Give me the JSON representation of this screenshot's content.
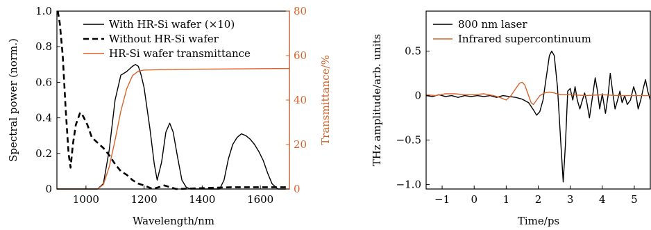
{
  "chart_data": [
    {
      "type": "line",
      "xlabel": "Wavelength/nm",
      "ylabel": "Spectral power (norm.)",
      "y2label": "Transmittance/%",
      "xlim": [
        900,
        1700
      ],
      "ylim": [
        0,
        1.0
      ],
      "y2lim": [
        0,
        80
      ],
      "x_ticks": [
        "1000",
        "1200",
        "1400",
        "1600"
      ],
      "y_ticks": [
        "0",
        "0.2",
        "0.4",
        "0.6",
        "0.8",
        "1.0"
      ],
      "y2_ticks": [
        "0",
        "20",
        "40",
        "60",
        "80"
      ],
      "legend_position": "top-right",
      "grid": false,
      "series": [
        {
          "name": "With HR-Si wafer (×10)",
          "color": "#000000",
          "style": "solid",
          "axis": "left",
          "points": [
            [
              900,
              0
            ],
            [
              1040,
              0
            ],
            [
              1060,
              0.03
            ],
            [
              1080,
              0.22
            ],
            [
              1100,
              0.5
            ],
            [
              1120,
              0.64
            ],
            [
              1140,
              0.66
            ],
            [
              1160,
              0.69
            ],
            [
              1170,
              0.7
            ],
            [
              1180,
              0.69
            ],
            [
              1190,
              0.64
            ],
            [
              1200,
              0.57
            ],
            [
              1220,
              0.34
            ],
            [
              1235,
              0.14
            ],
            [
              1245,
              0.05
            ],
            [
              1260,
              0.15
            ],
            [
              1275,
              0.32
            ],
            [
              1288,
              0.37
            ],
            [
              1300,
              0.32
            ],
            [
              1315,
              0.18
            ],
            [
              1330,
              0.05
            ],
            [
              1345,
              0.01
            ],
            [
              1360,
              0
            ],
            [
              1460,
              0
            ],
            [
              1475,
              0.05
            ],
            [
              1490,
              0.17
            ],
            [
              1505,
              0.25
            ],
            [
              1520,
              0.29
            ],
            [
              1535,
              0.31
            ],
            [
              1550,
              0.3
            ],
            [
              1565,
              0.28
            ],
            [
              1580,
              0.25
            ],
            [
              1595,
              0.21
            ],
            [
              1610,
              0.16
            ],
            [
              1625,
              0.09
            ],
            [
              1640,
              0.03
            ],
            [
              1660,
              0
            ],
            [
              1700,
              0
            ]
          ]
        },
        {
          "name": "Without HR-Si wafer",
          "color": "#000000",
          "style": "dashed",
          "axis": "left",
          "points": [
            [
              903,
              1.0
            ],
            [
              910,
              0.93
            ],
            [
              920,
              0.75
            ],
            [
              930,
              0.45
            ],
            [
              940,
              0.2
            ],
            [
              947,
              0.12
            ],
            [
              955,
              0.25
            ],
            [
              965,
              0.36
            ],
            [
              980,
              0.43
            ],
            [
              990,
              0.41
            ],
            [
              1005,
              0.36
            ],
            [
              1020,
              0.29
            ],
            [
              1040,
              0.26
            ],
            [
              1060,
              0.23
            ],
            [
              1080,
              0.19
            ],
            [
              1100,
              0.14
            ],
            [
              1120,
              0.1
            ],
            [
              1140,
              0.08
            ],
            [
              1160,
              0.05
            ],
            [
              1180,
              0.03
            ],
            [
              1200,
              0.02
            ],
            [
              1215,
              0.01
            ],
            [
              1230,
              0
            ],
            [
              1250,
              0.01
            ],
            [
              1270,
              0.02
            ],
            [
              1290,
              0.01
            ],
            [
              1310,
              0
            ],
            [
              1500,
              0.01
            ],
            [
              1700,
              0.01
            ]
          ]
        },
        {
          "name": "HR-Si wafer transmittance",
          "color": "#d9622b",
          "style": "solid",
          "axis": "right",
          "points": [
            [
              900,
              0
            ],
            [
              1040,
              0
            ],
            [
              1060,
              2
            ],
            [
              1080,
              10
            ],
            [
              1100,
              22
            ],
            [
              1120,
              35
            ],
            [
              1140,
              45
            ],
            [
              1160,
              51
            ],
            [
              1180,
              53
            ],
            [
              1200,
              53.5
            ],
            [
              1300,
              53.8
            ],
            [
              1500,
              54
            ],
            [
              1700,
              54.2
            ]
          ]
        }
      ]
    },
    {
      "type": "line",
      "xlabel": "Time/ps",
      "ylabel": "THz amplitude/arb. units",
      "xlim": [
        -1.5,
        5.5
      ],
      "ylim": [
        -1.05,
        0.95
      ],
      "x_ticks": [
        "−1",
        "0",
        "1",
        "2",
        "3",
        "4",
        "5"
      ],
      "y_ticks": [
        "−1.0",
        "−0.5",
        "0",
        "0.5"
      ],
      "legend_position": "top-left",
      "grid": false,
      "series": [
        {
          "name": "800 nm laser",
          "color": "#000000",
          "style": "solid",
          "points": [
            [
              -1.5,
              0
            ],
            [
              -1.3,
              -0.01
            ],
            [
              -1.1,
              0.01
            ],
            [
              -0.9,
              -0.01
            ],
            [
              -0.7,
              0
            ],
            [
              -0.5,
              -0.02
            ],
            [
              -0.3,
              0
            ],
            [
              -0.1,
              -0.01
            ],
            [
              0.1,
              0
            ],
            [
              0.3,
              -0.01
            ],
            [
              0.5,
              0
            ],
            [
              0.7,
              -0.02
            ],
            [
              0.9,
              0
            ],
            [
              1.1,
              -0.01
            ],
            [
              1.3,
              -0.02
            ],
            [
              1.5,
              -0.04
            ],
            [
              1.7,
              -0.08
            ],
            [
              1.85,
              -0.16
            ],
            [
              1.95,
              -0.22
            ],
            [
              2.05,
              -0.18
            ],
            [
              2.15,
              -0.05
            ],
            [
              2.25,
              0.2
            ],
            [
              2.35,
              0.45
            ],
            [
              2.42,
              0.5
            ],
            [
              2.5,
              0.45
            ],
            [
              2.6,
              0.1
            ],
            [
              2.7,
              -0.5
            ],
            [
              2.78,
              -0.97
            ],
            [
              2.85,
              -0.55
            ],
            [
              2.92,
              0.05
            ],
            [
              3.0,
              0.08
            ],
            [
              3.08,
              -0.05
            ],
            [
              3.15,
              0.1
            ],
            [
              3.22,
              -0.05
            ],
            [
              3.3,
              -0.15
            ],
            [
              3.38,
              -0.05
            ],
            [
              3.45,
              0.03
            ],
            [
              3.52,
              -0.08
            ],
            [
              3.6,
              -0.25
            ],
            [
              3.68,
              -0.05
            ],
            [
              3.78,
              0.2
            ],
            [
              3.85,
              0.05
            ],
            [
              3.92,
              -0.15
            ],
            [
              4.0,
              0.02
            ],
            [
              4.1,
              -0.2
            ],
            [
              4.18,
              0.0
            ],
            [
              4.25,
              0.25
            ],
            [
              4.32,
              0.05
            ],
            [
              4.4,
              -0.15
            ],
            [
              4.48,
              -0.05
            ],
            [
              4.55,
              0.05
            ],
            [
              4.62,
              -0.08
            ],
            [
              4.7,
              0.0
            ],
            [
              4.78,
              -0.1
            ],
            [
              4.88,
              -0.05
            ],
            [
              4.98,
              0.1
            ],
            [
              5.05,
              0.02
            ],
            [
              5.12,
              -0.15
            ],
            [
              5.2,
              -0.05
            ],
            [
              5.28,
              0.08
            ],
            [
              5.35,
              0.18
            ],
            [
              5.42,
              0.05
            ],
            [
              5.5,
              -0.05
            ]
          ]
        },
        {
          "name": "Infrared supercontinuum",
          "color": "#d9622b",
          "style": "solid",
          "points": [
            [
              -1.5,
              0.01
            ],
            [
              -1.2,
              0.0
            ],
            [
              -0.9,
              0.02
            ],
            [
              -0.6,
              0.02
            ],
            [
              -0.3,
              0.01
            ],
            [
              0.0,
              0.01
            ],
            [
              0.3,
              0.02
            ],
            [
              0.6,
              0.0
            ],
            [
              0.8,
              -0.02
            ],
            [
              1.0,
              -0.05
            ],
            [
              1.15,
              0.0
            ],
            [
              1.3,
              0.08
            ],
            [
              1.42,
              0.14
            ],
            [
              1.5,
              0.15
            ],
            [
              1.58,
              0.12
            ],
            [
              1.68,
              0.02
            ],
            [
              1.78,
              -0.08
            ],
            [
              1.85,
              -0.1
            ],
            [
              1.95,
              -0.05
            ],
            [
              2.05,
              0.0
            ],
            [
              2.2,
              0.03
            ],
            [
              2.35,
              0.04
            ],
            [
              2.5,
              0.03
            ],
            [
              2.7,
              0.01
            ],
            [
              3.0,
              0.01
            ],
            [
              3.5,
              0.0
            ],
            [
              4.0,
              0.01
            ],
            [
              4.5,
              0.0
            ],
            [
              5.0,
              0.0
            ],
            [
              5.5,
              0.0
            ]
          ]
        }
      ]
    }
  ]
}
